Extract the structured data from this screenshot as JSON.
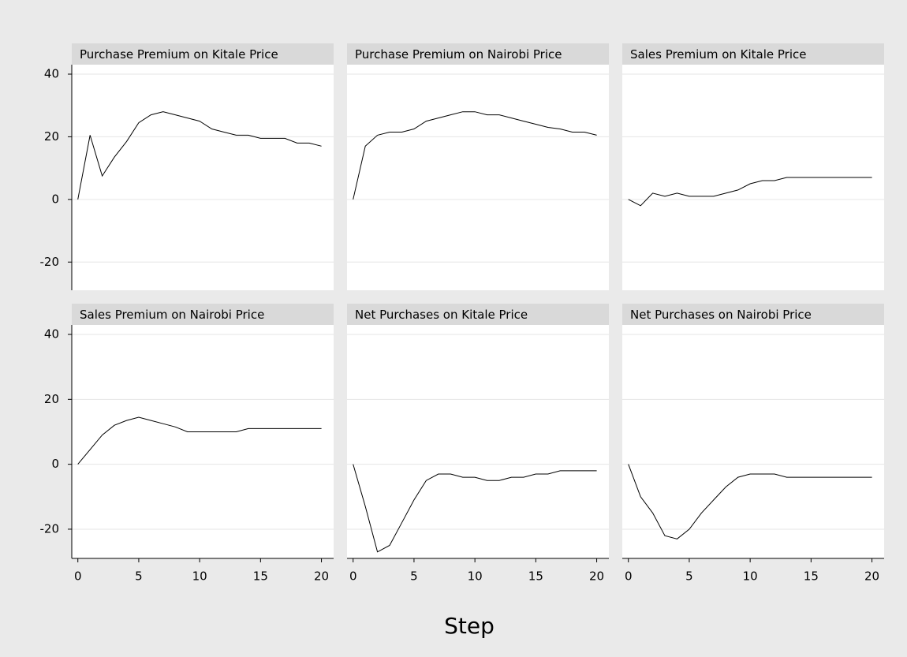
{
  "chart_data": {
    "type": "line",
    "xlabel": "Step",
    "color": "#000000",
    "grid": true,
    "x": [
      0,
      1,
      2,
      3,
      4,
      5,
      6,
      7,
      8,
      9,
      10,
      11,
      12,
      13,
      14,
      15,
      16,
      17,
      18,
      19,
      20
    ],
    "xlim": [
      -0.5,
      21
    ],
    "xticks": [
      0,
      5,
      10,
      15,
      20
    ],
    "ylim": [
      -29,
      40
    ],
    "yticks": [
      -20,
      0,
      20,
      40
    ],
    "panels": [
      {
        "title": "Purchase Premium on Kitale Price",
        "values": [
          0,
          20.5,
          7.5,
          13.5,
          18.5,
          24.5,
          27,
          28,
          27,
          26,
          25,
          22.5,
          21.5,
          20.5,
          20.5,
          19.5,
          19.5,
          19.5,
          18,
          18,
          17
        ]
      },
      {
        "title": "Purchase Premium on Nairobi Price",
        "values": [
          0,
          17,
          20.5,
          21.5,
          21.5,
          22.5,
          25,
          26,
          27,
          28,
          28,
          27,
          27,
          26,
          25,
          24,
          23,
          22.5,
          21.5,
          21.5,
          20.5
        ]
      },
      {
        "title": "Sales Premium on Kitale Price",
        "values": [
          0,
          -2,
          2,
          1,
          2,
          1,
          1,
          1,
          2,
          3,
          5,
          6,
          6,
          7,
          7,
          7,
          7,
          7,
          7,
          7,
          7
        ]
      },
      {
        "title": "Sales Premium on Nairobi Price",
        "values": [
          0,
          4.5,
          9,
          12,
          13.5,
          14.5,
          13.5,
          12.5,
          11.5,
          10,
          10,
          10,
          10,
          10,
          11,
          11,
          11,
          11,
          11,
          11,
          11
        ]
      },
      {
        "title": "Net Purchases on Kitale Price",
        "values": [
          0,
          -13,
          -27,
          -25,
          -18,
          -11,
          -5,
          -3,
          -3,
          -4,
          -4,
          -5,
          -5,
          -4,
          -4,
          -3,
          -3,
          -2,
          -2,
          -2,
          -2
        ]
      },
      {
        "title": "Net Purchases on Nairobi Price",
        "values": [
          0,
          -10,
          -15,
          -22,
          -23,
          -20,
          -15,
          -11,
          -7,
          -4,
          -3,
          -3,
          -3,
          -4,
          -4,
          -4,
          -4,
          -4,
          -4,
          -4,
          -4
        ]
      }
    ]
  }
}
